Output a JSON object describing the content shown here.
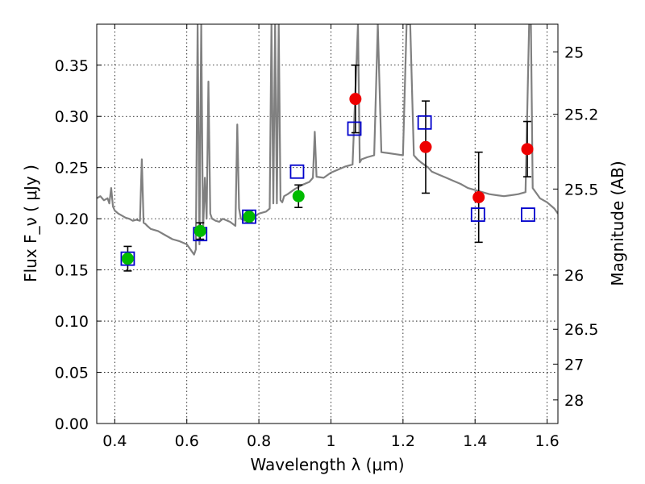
{
  "chart_data": {
    "type": "scatter",
    "title": "",
    "xlabel": "Wavelength  λ (μm)",
    "ylabel": "Flux  F_ν  ( μJy )",
    "ylabel_right": "Magnitude (AB)",
    "xlim": [
      0.35,
      1.63
    ],
    "ylim": [
      0.0,
      0.39
    ],
    "grid": true,
    "xticks": [
      0.4,
      0.6,
      0.8,
      1.0,
      1.2,
      1.4,
      1.6
    ],
    "xtick_labels": [
      "0.4",
      "0.6",
      "0.8",
      "1",
      "1.2",
      "1.4",
      "1.6"
    ],
    "yticks": [
      0.0,
      0.05,
      0.1,
      0.15,
      0.2,
      0.25,
      0.3,
      0.35
    ],
    "ytick_labels": [
      "0.00",
      "0.05",
      "0.10",
      "0.15",
      "0.20",
      "0.25",
      "0.30",
      "0.35"
    ],
    "right_ticks": [
      {
        "flux": 0.363,
        "label": "25"
      },
      {
        "flux": 0.302,
        "label": "25.2"
      },
      {
        "flux": 0.229,
        "label": "25.5"
      },
      {
        "flux": 0.145,
        "label": "26"
      },
      {
        "flux": 0.092,
        "label": "26.5"
      },
      {
        "flux": 0.058,
        "label": "27"
      },
      {
        "flux": 0.023,
        "label": "28"
      }
    ],
    "series": [
      {
        "name": "model spectrum",
        "kind": "line",
        "color": "#808080",
        "x": [
          0.35,
          0.36,
          0.37,
          0.38,
          0.385,
          0.39,
          0.395,
          0.4,
          0.41,
          0.42,
          0.43,
          0.44,
          0.45,
          0.46,
          0.47,
          0.475,
          0.48,
          0.485,
          0.49,
          0.5,
          0.52,
          0.54,
          0.56,
          0.58,
          0.6,
          0.61,
          0.62,
          0.625,
          0.63,
          0.635,
          0.64,
          0.645,
          0.65,
          0.655,
          0.66,
          0.665,
          0.67,
          0.68,
          0.69,
          0.7,
          0.72,
          0.735,
          0.74,
          0.745,
          0.75,
          0.76,
          0.78,
          0.8,
          0.82,
          0.83,
          0.835,
          0.84,
          0.845,
          0.85,
          0.855,
          0.86,
          0.865,
          0.87,
          0.88,
          0.9,
          0.92,
          0.94,
          0.95,
          0.955,
          0.96,
          0.98,
          1.0,
          1.02,
          1.04,
          1.06,
          1.075,
          1.08,
          1.085,
          1.1,
          1.12,
          1.13,
          1.14,
          1.16,
          1.18,
          1.2,
          1.21,
          1.215,
          1.22,
          1.23,
          1.24,
          1.25,
          1.27,
          1.28,
          1.3,
          1.32,
          1.34,
          1.36,
          1.38,
          1.4,
          1.42,
          1.44,
          1.46,
          1.48,
          1.5,
          1.52,
          1.54,
          1.55,
          1.555,
          1.56,
          1.57,
          1.58,
          1.6,
          1.62,
          1.63
        ],
        "y": [
          0.22,
          0.222,
          0.218,
          0.22,
          0.215,
          0.23,
          0.212,
          0.208,
          0.205,
          0.203,
          0.201,
          0.2,
          0.198,
          0.199,
          0.198,
          0.258,
          0.196,
          0.195,
          0.193,
          0.19,
          0.188,
          0.184,
          0.18,
          0.178,
          0.175,
          0.17,
          0.165,
          0.17,
          0.39,
          0.175,
          0.39,
          0.185,
          0.24,
          0.2,
          0.334,
          0.205,
          0.2,
          0.198,
          0.197,
          0.2,
          0.197,
          0.193,
          0.292,
          0.21,
          0.2,
          0.198,
          0.2,
          0.205,
          0.207,
          0.21,
          0.39,
          0.215,
          0.39,
          0.215,
          0.39,
          0.218,
          0.216,
          0.222,
          0.224,
          0.229,
          0.233,
          0.236,
          0.24,
          0.285,
          0.241,
          0.24,
          0.245,
          0.248,
          0.251,
          0.253,
          0.39,
          0.255,
          0.258,
          0.26,
          0.262,
          0.39,
          0.265,
          0.264,
          0.263,
          0.262,
          0.39,
          0.39,
          0.39,
          0.262,
          0.258,
          0.255,
          0.25,
          0.246,
          0.243,
          0.24,
          0.237,
          0.234,
          0.23,
          0.228,
          0.226,
          0.224,
          0.223,
          0.222,
          0.223,
          0.224,
          0.226,
          0.39,
          0.39,
          0.23,
          0.225,
          0.22,
          0.216,
          0.21,
          0.205
        ]
      },
      {
        "name": "blue squares",
        "kind": "marker",
        "marker": "open-square",
        "color": "#0000cc",
        "points": [
          {
            "x": 0.436,
            "y": 0.161
          },
          {
            "x": 0.637,
            "y": 0.185
          },
          {
            "x": 0.773,
            "y": 0.202
          },
          {
            "x": 0.906,
            "y": 0.246
          },
          {
            "x": 1.065,
            "y": 0.288
          },
          {
            "x": 1.26,
            "y": 0.294
          },
          {
            "x": 1.408,
            "y": 0.204
          },
          {
            "x": 1.547,
            "y": 0.204
          }
        ]
      },
      {
        "name": "green points",
        "kind": "marker",
        "marker": "filled-circle",
        "color": "#00bb00",
        "points": [
          {
            "x": 0.436,
            "y": 0.161,
            "err": 0.012
          },
          {
            "x": 0.637,
            "y": 0.188,
            "err": 0.008
          },
          {
            "x": 0.773,
            "y": 0.202,
            "err": 0.006
          },
          {
            "x": 0.91,
            "y": 0.222,
            "err": 0.011
          }
        ]
      },
      {
        "name": "red points",
        "kind": "marker",
        "marker": "filled-circle",
        "color": "#ee0000",
        "points": [
          {
            "x": 1.068,
            "y": 0.317,
            "err": 0.033
          },
          {
            "x": 1.263,
            "y": 0.27,
            "err": 0.045
          },
          {
            "x": 1.41,
            "y": 0.221,
            "err": 0.044
          },
          {
            "x": 1.545,
            "y": 0.268,
            "err": 0.027
          }
        ]
      }
    ]
  }
}
